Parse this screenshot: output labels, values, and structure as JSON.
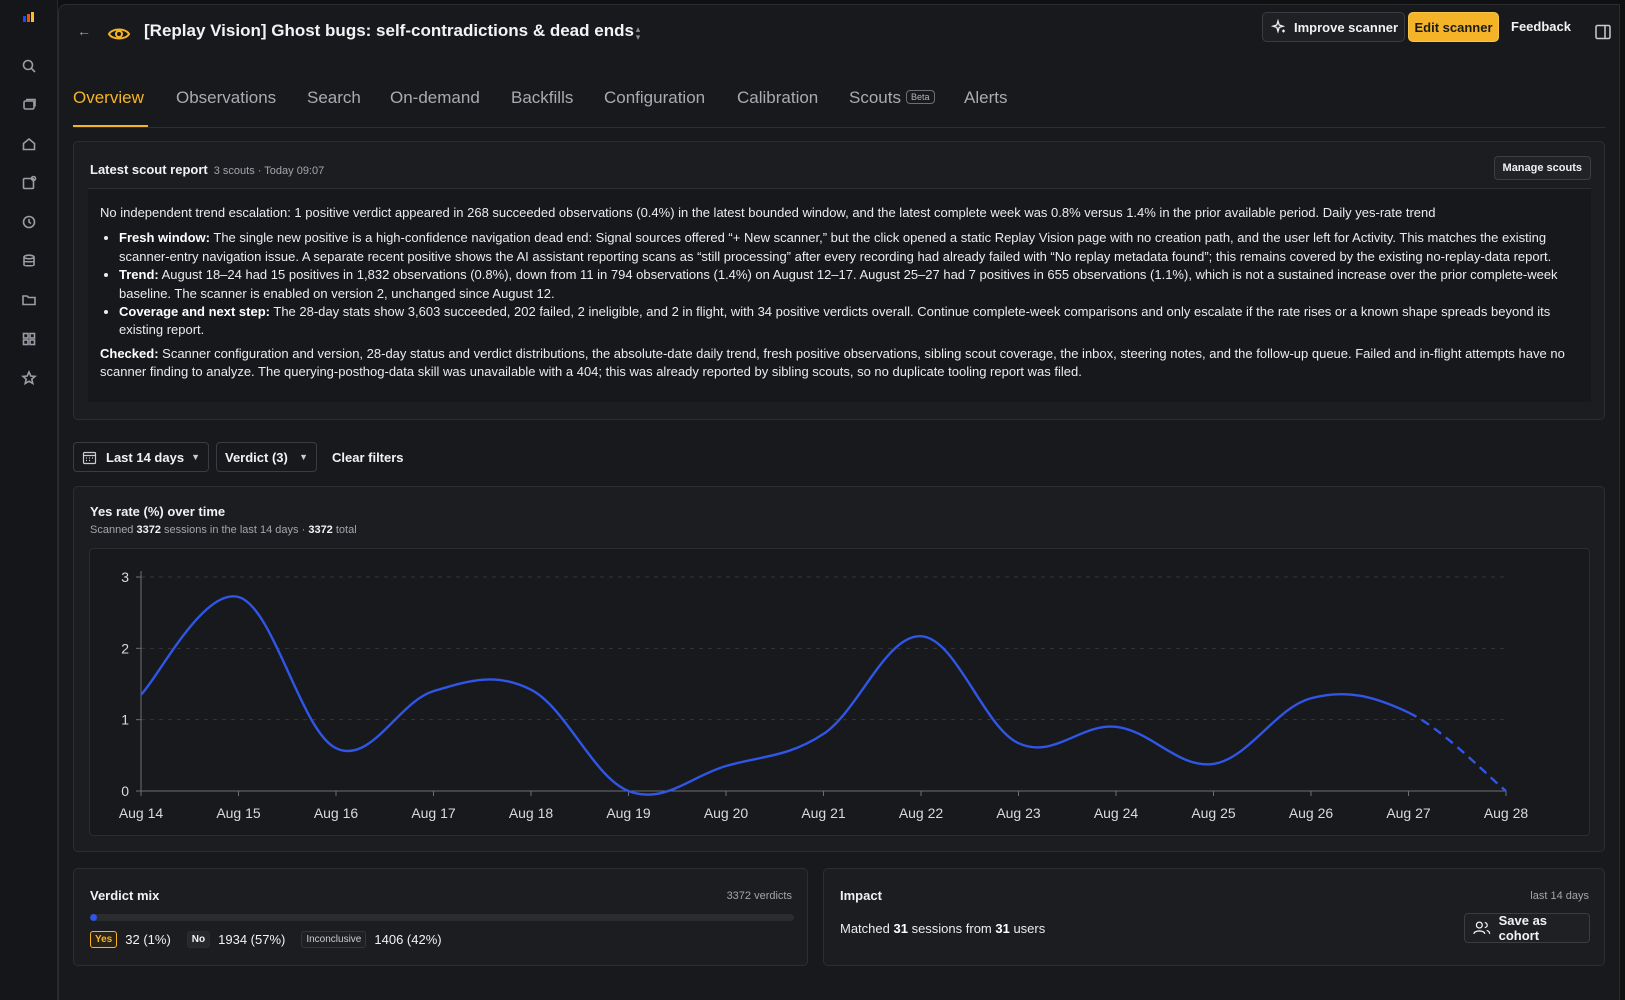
{
  "header": {
    "title": "[Replay Vision] Ghost bugs: self-contradictions & dead ends",
    "improve_label": "Improve scanner",
    "edit_label": "Edit scanner",
    "feedback_label": "Feedback"
  },
  "tabs": [
    {
      "label": "Overview",
      "active": true
    },
    {
      "label": "Observations"
    },
    {
      "label": "Search"
    },
    {
      "label": "On-demand"
    },
    {
      "label": "Backfills"
    },
    {
      "label": "Configuration"
    },
    {
      "label": "Calibration"
    },
    {
      "label": "Scouts",
      "badge": "Beta"
    },
    {
      "label": "Alerts"
    }
  ],
  "report": {
    "title": "Latest scout report",
    "meta": "3 scouts · Today 09:07",
    "manage_label": "Manage scouts",
    "intro": "No independent trend escalation: 1 positive verdict appeared in 268 succeeded observations (0.4%) in the latest bounded window, and the latest complete week was 0.8% versus 1.4% in the prior available period. Daily yes-rate trend",
    "bullets": [
      {
        "label": "Fresh window:",
        "text": " The single new positive is a high-confidence navigation dead end: Signal sources offered “+ New scanner,” but the click opened a static Replay Vision page with no creation path, and the user left for Activity. This matches the existing scanner-entry navigation issue. A separate recent positive shows the AI assistant reporting scans as “still processing” after every recording had already failed with “No replay metadata found”; this remains covered by the existing no-replay-data report."
      },
      {
        "label": "Trend:",
        "text": " August 18–24 had 15 positives in 1,832 observations (0.8%), down from 11 in 794 observations (1.4%) on August 12–17. August 25–27 had 7 positives in 655 observations (1.1%), which is not a sustained increase over the prior complete-week baseline. The scanner is enabled on version 2, unchanged since August 12."
      },
      {
        "label": "Coverage and next step:",
        "text": " The 28-day stats show 3,603 succeeded, 202 failed, 2 ineligible, and 2 in flight, with 34 positive verdicts overall. Continue complete-week comparisons and only escalate if the rate rises or a known shape spreads beyond its existing report."
      }
    ],
    "checked_label": "Checked:",
    "checked_text": " Scanner configuration and version, 28-day status and verdict distributions, the absolute-date daily trend, fresh positive observations, sibling scout coverage, the inbox, steering notes, and the follow-up queue. Failed and in-flight attempts have no scanner finding to analyze. The querying-posthog-data skill was unavailable with a 404; this was already reported by sibling scouts, so no duplicate tooling report was filed."
  },
  "filters": {
    "range_label": "Last 14 days",
    "verdict_label": "Verdict (3)",
    "clear_label": "Clear filters"
  },
  "chart": {
    "title": "Yes rate (%) over time",
    "sub_prefix": "Scanned ",
    "sessions": "3372",
    "sub_middle": " sessions in the last 14 days · ",
    "total": "3372",
    "sub_suffix": " total"
  },
  "chart_data": {
    "type": "line",
    "title": "Yes rate (%) over time",
    "categories": [
      "Aug 14",
      "Aug 15",
      "Aug 16",
      "Aug 17",
      "Aug 18",
      "Aug 19",
      "Aug 20",
      "Aug 21",
      "Aug 22",
      "Aug 23",
      "Aug 24",
      "Aug 25",
      "Aug 26",
      "Aug 27",
      "Aug 28"
    ],
    "series": [
      {
        "values": [
          1.35,
          2.72,
          0.6,
          1.4,
          1.42,
          0.0,
          0.35,
          0.8,
          2.17,
          0.67,
          0.9,
          0.38,
          1.3,
          1.1,
          0.0
        ],
        "color": "#2f56e6",
        "dashed_from_index": 13
      }
    ],
    "yticks": [
      0,
      1,
      2,
      3
    ],
    "ylim": [
      0,
      3
    ],
    "grid": true
  },
  "verdict_mix": {
    "title": "Verdict mix",
    "count_label": "3372 verdicts",
    "yes_fraction": 0.01,
    "yes_chip": "Yes",
    "yes_val": "32 (1%)",
    "no_chip": "No",
    "no_val": "1934 (57%)",
    "inc_chip": "Inconclusive",
    "inc_val": "1406 (42%)"
  },
  "impact": {
    "title": "Impact",
    "range": "last 14 days",
    "prefix": "Matched ",
    "sessions": "31",
    "middle": " sessions from ",
    "users": "31",
    "suffix": " users",
    "cohort_label": "Save as cohort"
  },
  "colors": {
    "accent": "#f5b428",
    "series": "#2f56e6",
    "background": "#18191c"
  }
}
